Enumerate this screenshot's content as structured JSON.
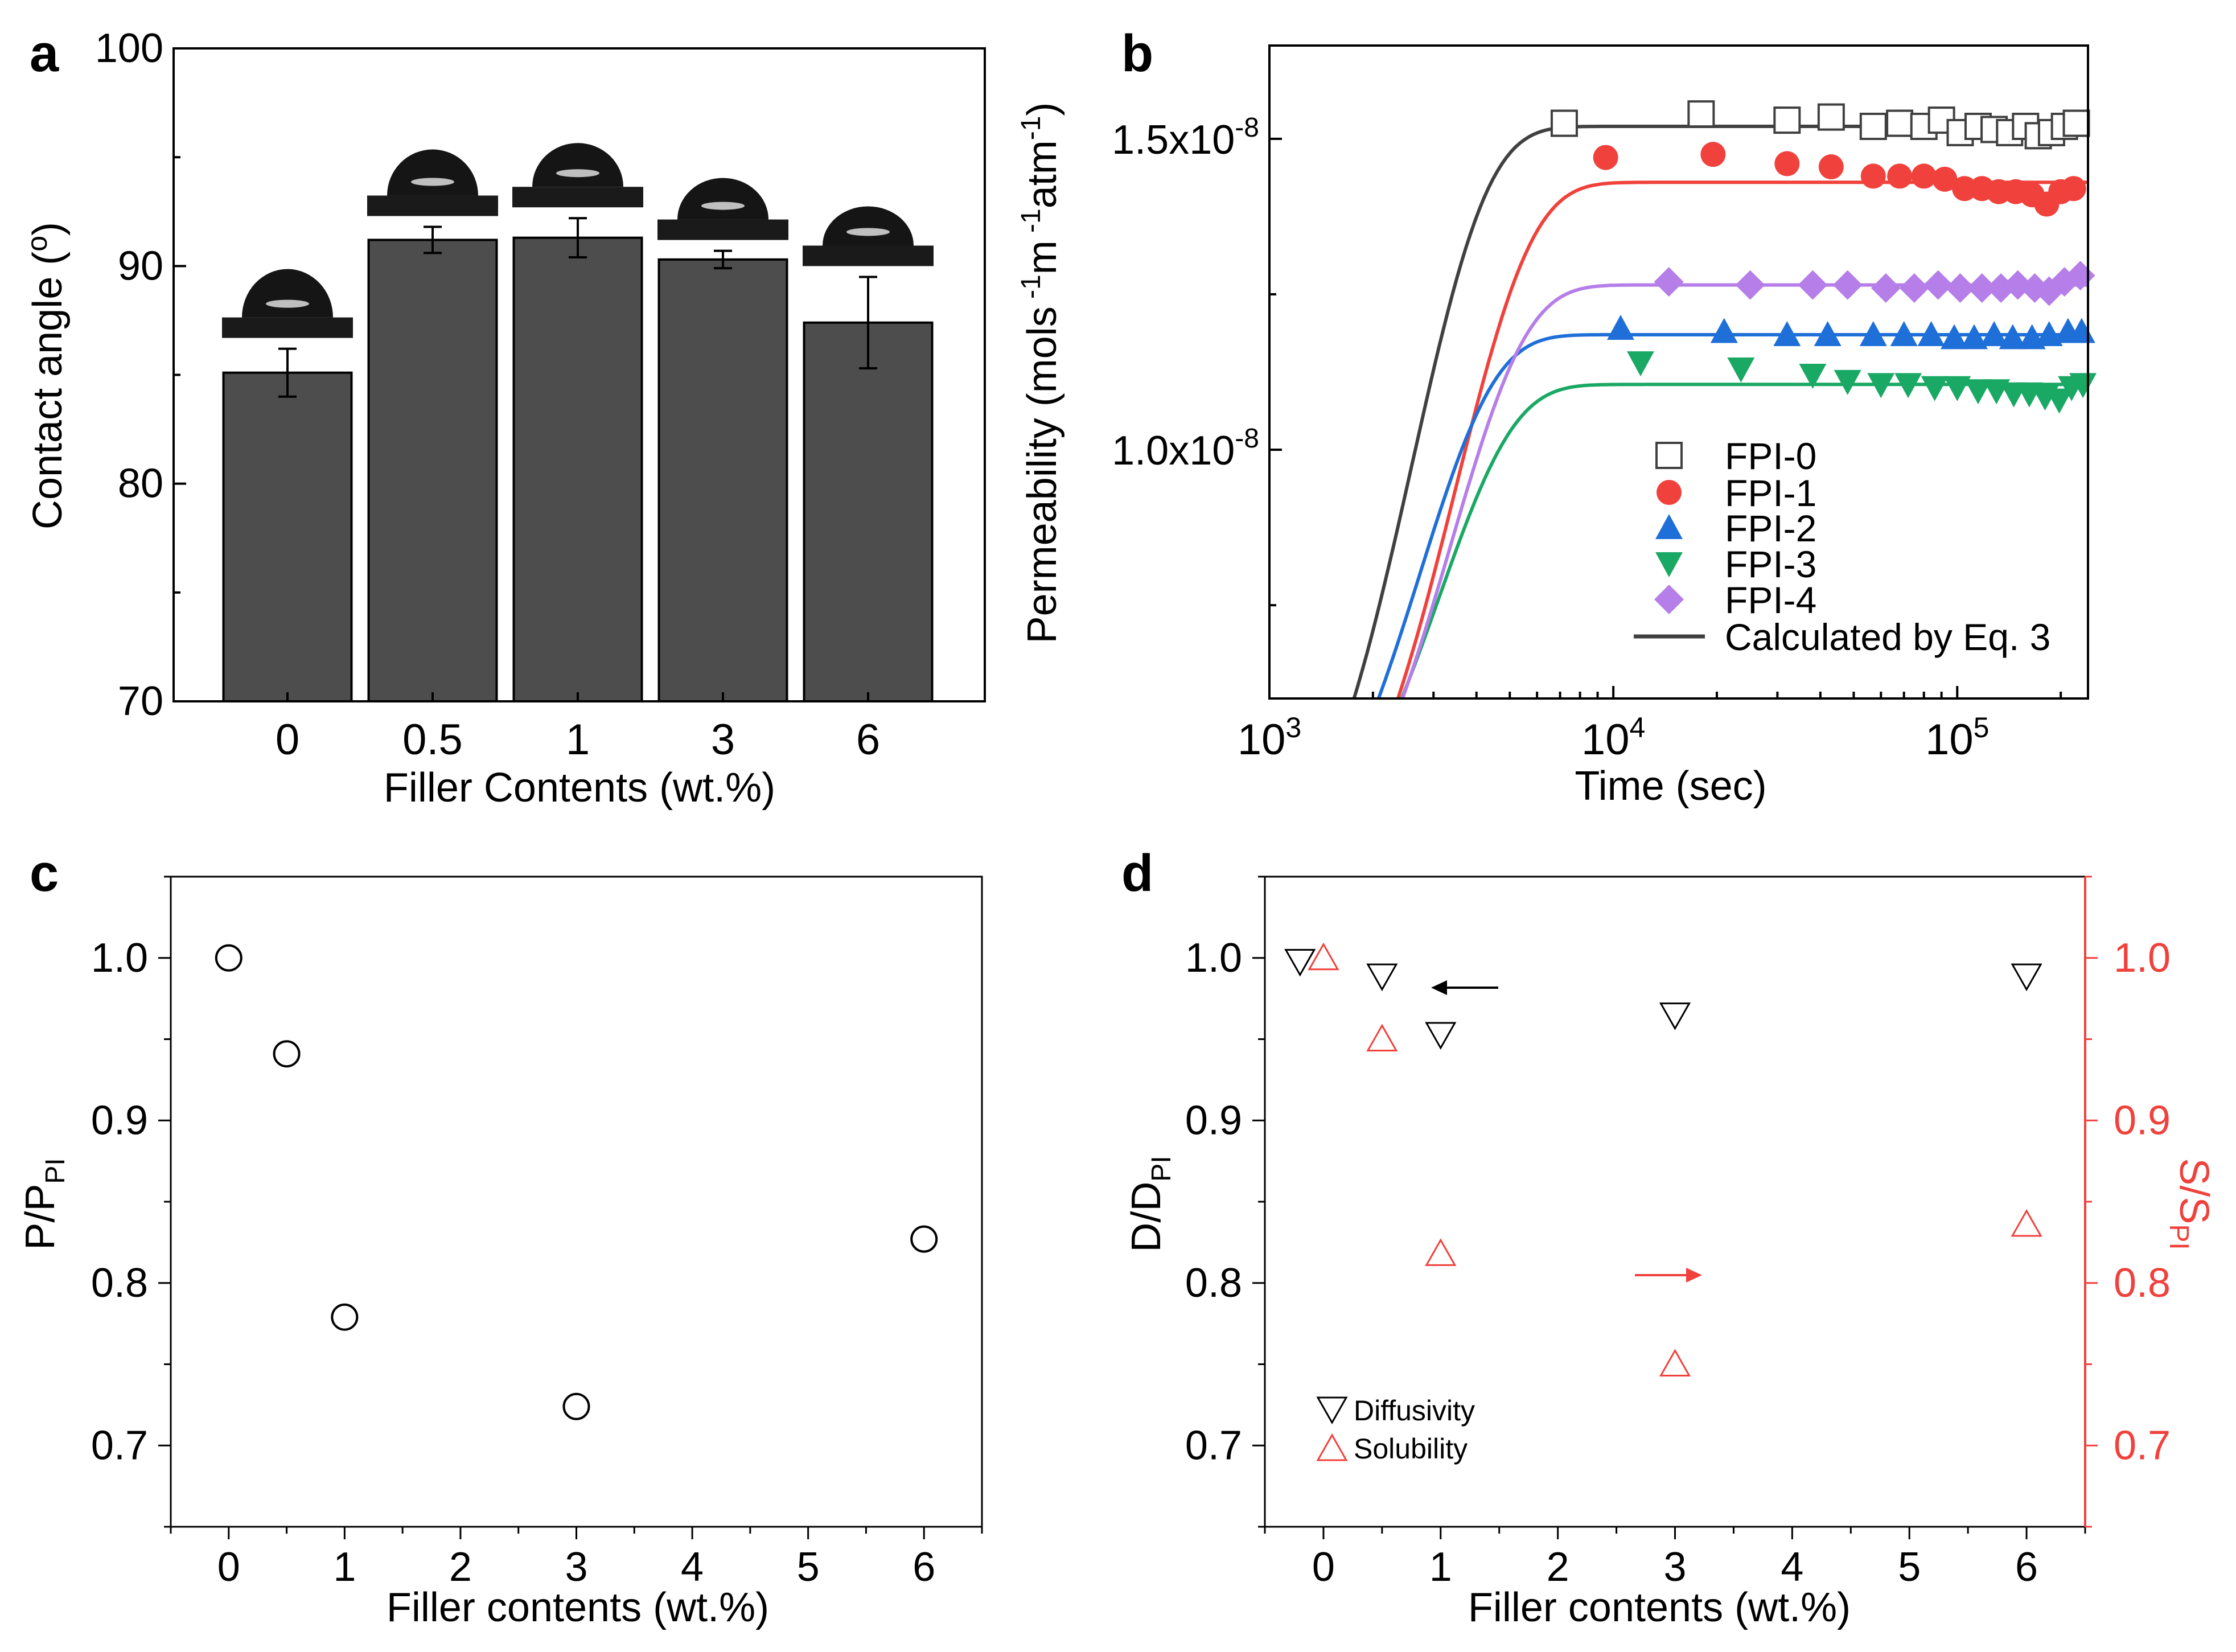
{
  "chart_data": [
    {
      "panel": "a",
      "type": "bar",
      "xlabel": "Filler Contents (wt.%)",
      "ylabel": "Contact angle (o)",
      "ylabel_parts": [
        "Contact angle (",
        "o",
        ")"
      ],
      "ylim": [
        70,
        100
      ],
      "yticks": [
        "70",
        "80",
        "90",
        "100"
      ],
      "categories": [
        "0",
        "0.5",
        "1",
        "3",
        "6"
      ],
      "values": [
        85.1,
        91.2,
        91.3,
        90.3,
        87.4
      ],
      "errors": [
        1.1,
        0.6,
        0.9,
        0.4,
        2.1
      ],
      "bar_color": "#4d4d4d",
      "inset_note": "droplet photo above each bar"
    },
    {
      "panel": "b",
      "type": "scatter",
      "x_scale": "log",
      "xlim": [
        1000,
        240000
      ],
      "ylim": [
        6e-09,
        1.65e-08
      ],
      "xlabel": "Time (sec)",
      "ylabel": "Permeability (mols-1m-1atm-1)",
      "ylabel_parts": [
        "Permeability (mols",
        " -1",
        "m",
        " -1",
        "atm",
        "-1",
        ")"
      ],
      "xticks": [
        {
          "base": "10",
          "exp": "3"
        },
        {
          "base": "10",
          "exp": "4"
        },
        {
          "base": "10",
          "exp": "5"
        }
      ],
      "yticks": [
        {
          "mant": "1.0x10",
          "exp": "-8"
        },
        {
          "mant": "1.5x10",
          "exp": "-8"
        }
      ],
      "series": [
        {
          "name": "FPI-0",
          "color": "#404040",
          "marker": "square-open",
          "plateau": 1.52e-08,
          "x": [
            7200,
            18000,
            32000,
            43000,
            57000,
            68000,
            80000,
            90000,
            102000,
            115000,
            128000,
            142000,
            158000,
            172000,
            188000,
            205000,
            222000
          ],
          "y": [
            1.525e-08,
            1.54e-08,
            1.53e-08,
            1.535e-08,
            1.52e-08,
            1.525e-08,
            1.52e-08,
            1.53e-08,
            1.51e-08,
            1.52e-08,
            1.515e-08,
            1.51e-08,
            1.52e-08,
            1.505e-08,
            1.51e-08,
            1.52e-08,
            1.525e-08
          ]
        },
        {
          "name": "FPI-1",
          "color": "#f0413c",
          "marker": "circle",
          "plateau": 1.43e-08,
          "x": [
            9500,
            19500,
            32000,
            43000,
            57000,
            68000,
            80000,
            92000,
            105000,
            118000,
            132000,
            148000,
            165000,
            182000,
            200000,
            218000
          ],
          "y": [
            1.47e-08,
            1.475e-08,
            1.46e-08,
            1.455e-08,
            1.44e-08,
            1.44e-08,
            1.44e-08,
            1.435e-08,
            1.42e-08,
            1.42e-08,
            1.415e-08,
            1.415e-08,
            1.41e-08,
            1.395e-08,
            1.415e-08,
            1.42e-08
          ]
        },
        {
          "name": "FPI-2",
          "color": "#1f6fd9",
          "marker": "triangle-up",
          "plateau": 1.185e-08,
          "x": [
            10500,
            21000,
            32000,
            42000,
            57000,
            70000,
            84000,
            98000,
            112000,
            128000,
            145000,
            165000,
            185000,
            210000,
            230000
          ],
          "y": [
            1.195e-08,
            1.19e-08,
            1.185e-08,
            1.185e-08,
            1.185e-08,
            1.185e-08,
            1.185e-08,
            1.18e-08,
            1.18e-08,
            1.185e-08,
            1.18e-08,
            1.18e-08,
            1.185e-08,
            1.19e-08,
            1.19e-08
          ]
        },
        {
          "name": "FPI-3",
          "color": "#1aa865",
          "marker": "triangle-down",
          "plateau": 1.105e-08,
          "x": [
            12000,
            23500,
            38000,
            48000,
            60000,
            72000,
            86000,
            100000,
            115000,
            130000,
            146000,
            162000,
            180000,
            198000,
            215000,
            232000
          ],
          "y": [
            1.14e-08,
            1.13e-08,
            1.12e-08,
            1.11e-08,
            1.105e-08,
            1.105e-08,
            1.1e-08,
            1.1e-08,
            1.095e-08,
            1.095e-08,
            1.09e-08,
            1.09e-08,
            1.085e-08,
            1.08e-08,
            1.1e-08,
            1.105e-08
          ]
        },
        {
          "name": "FPI-4",
          "color": "#b57ee8",
          "marker": "diamond",
          "plateau": 1.265e-08,
          "x": [
            14500,
            25000,
            38000,
            48000,
            62000,
            75000,
            88000,
            102000,
            118000,
            134000,
            150000,
            168000,
            185000,
            205000,
            228000
          ],
          "y": [
            1.27e-08,
            1.265e-08,
            1.265e-08,
            1.265e-08,
            1.26e-08,
            1.26e-08,
            1.265e-08,
            1.26e-08,
            1.26e-08,
            1.26e-08,
            1.265e-08,
            1.26e-08,
            1.255e-08,
            1.27e-08,
            1.28e-08
          ]
        }
      ],
      "fit_label": "Calculated by Eq. 3",
      "fit_note": "solid lines: model curves for each series"
    },
    {
      "panel": "c",
      "type": "scatter",
      "xlabel": "Filler contents (wt.%)",
      "ylabel": "P/PPI",
      "ylabel_parts": [
        "P/P",
        "PI"
      ],
      "xlim": [
        -0.5,
        6.5
      ],
      "ylim": [
        0.65,
        1.05
      ],
      "xticks": [
        "0",
        "1",
        "2",
        "3",
        "4",
        "5",
        "6"
      ],
      "yticks": [
        "0.7",
        "0.8",
        "0.9",
        "1.0"
      ],
      "series": [
        {
          "name": "P/PPI",
          "x": [
            0,
            0.5,
            1,
            3,
            6
          ],
          "y": [
            1.0,
            0.941,
            0.779,
            0.724,
            0.827
          ]
        }
      ]
    },
    {
      "panel": "d",
      "type": "scatter",
      "xlabel": "Filler contents (wt.%)",
      "ylabel": "D/DPI",
      "ylabel_parts": [
        "D/D",
        "PI"
      ],
      "ylabel_right": "S/SPI",
      "ylabel_right_parts": [
        "S/S",
        "PI"
      ],
      "xlim": [
        -0.5,
        6.5
      ],
      "ylim": [
        0.65,
        1.05
      ],
      "ylim_right": [
        0.65,
        1.05
      ],
      "xticks": [
        "0",
        "1",
        "2",
        "3",
        "4",
        "5",
        "6"
      ],
      "yticks": [
        "0.7",
        "0.8",
        "0.9",
        "1.0"
      ],
      "right_color": "#f0413c",
      "series": [
        {
          "name": "Diffusivity",
          "axis": "left",
          "color": "#000000",
          "x": [
            -0.2,
            0.5,
            1,
            3,
            6
          ],
          "y": [
            0.998,
            0.989,
            0.953,
            0.965,
            0.989
          ]
        },
        {
          "name": "Solubility",
          "axis": "right",
          "color": "#f0413c",
          "x": [
            0,
            0.5,
            1,
            3,
            6
          ],
          "y": [
            1.0,
            0.95,
            0.818,
            0.75,
            0.836
          ]
        }
      ]
    }
  ]
}
